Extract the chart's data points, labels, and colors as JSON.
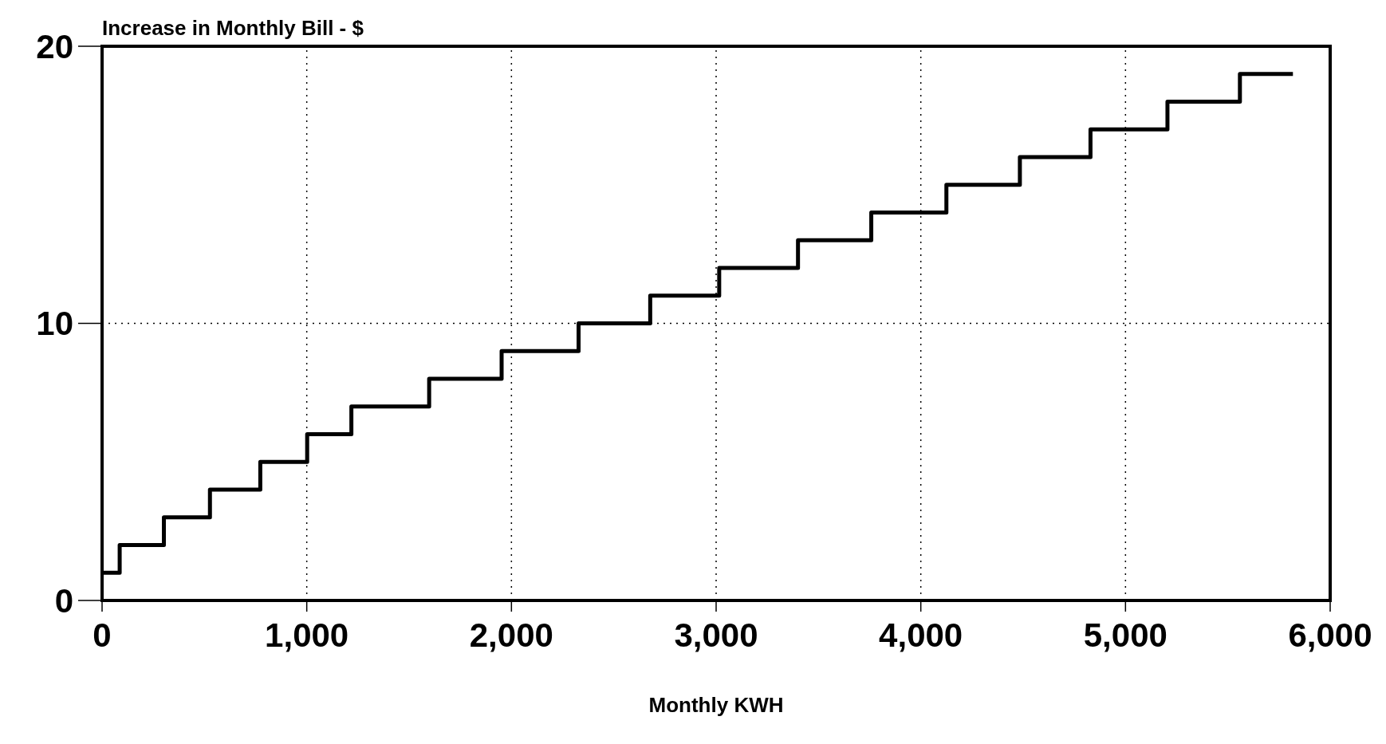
{
  "chart_data": {
    "type": "step",
    "ylabel": "Increase in Monthly Bill - $",
    "xlabel": "Monthly KWH",
    "x": [
      0,
      86,
      302,
      527,
      773,
      1002,
      1218,
      1598,
      1952,
      2328,
      2678,
      3015,
      3400,
      3758,
      4125,
      4484,
      4829,
      5205,
      5559,
      5818
    ],
    "series": [
      {
        "color": "#000000",
        "values": [
          1,
          2,
          3,
          4,
          5,
          6,
          7,
          8,
          9,
          10,
          11,
          12,
          13,
          14,
          15,
          16,
          17,
          18,
          19,
          19
        ]
      }
    ],
    "xlim": [
      0,
      6000
    ],
    "xticks": [
      0,
      {
        "value": 1000,
        "label": "1,000"
      },
      {
        "value": 2000,
        "label": "2,000"
      },
      {
        "value": 3000,
        "label": "3,000"
      },
      {
        "value": 4000,
        "label": "4,000"
      },
      {
        "value": 5000,
        "label": "5,000"
      },
      {
        "value": 6000,
        "label": "6,000"
      }
    ],
    "ylim": [
      0,
      20
    ],
    "yticks": [
      0,
      10,
      20
    ],
    "grid": true,
    "line_style": "solid"
  }
}
